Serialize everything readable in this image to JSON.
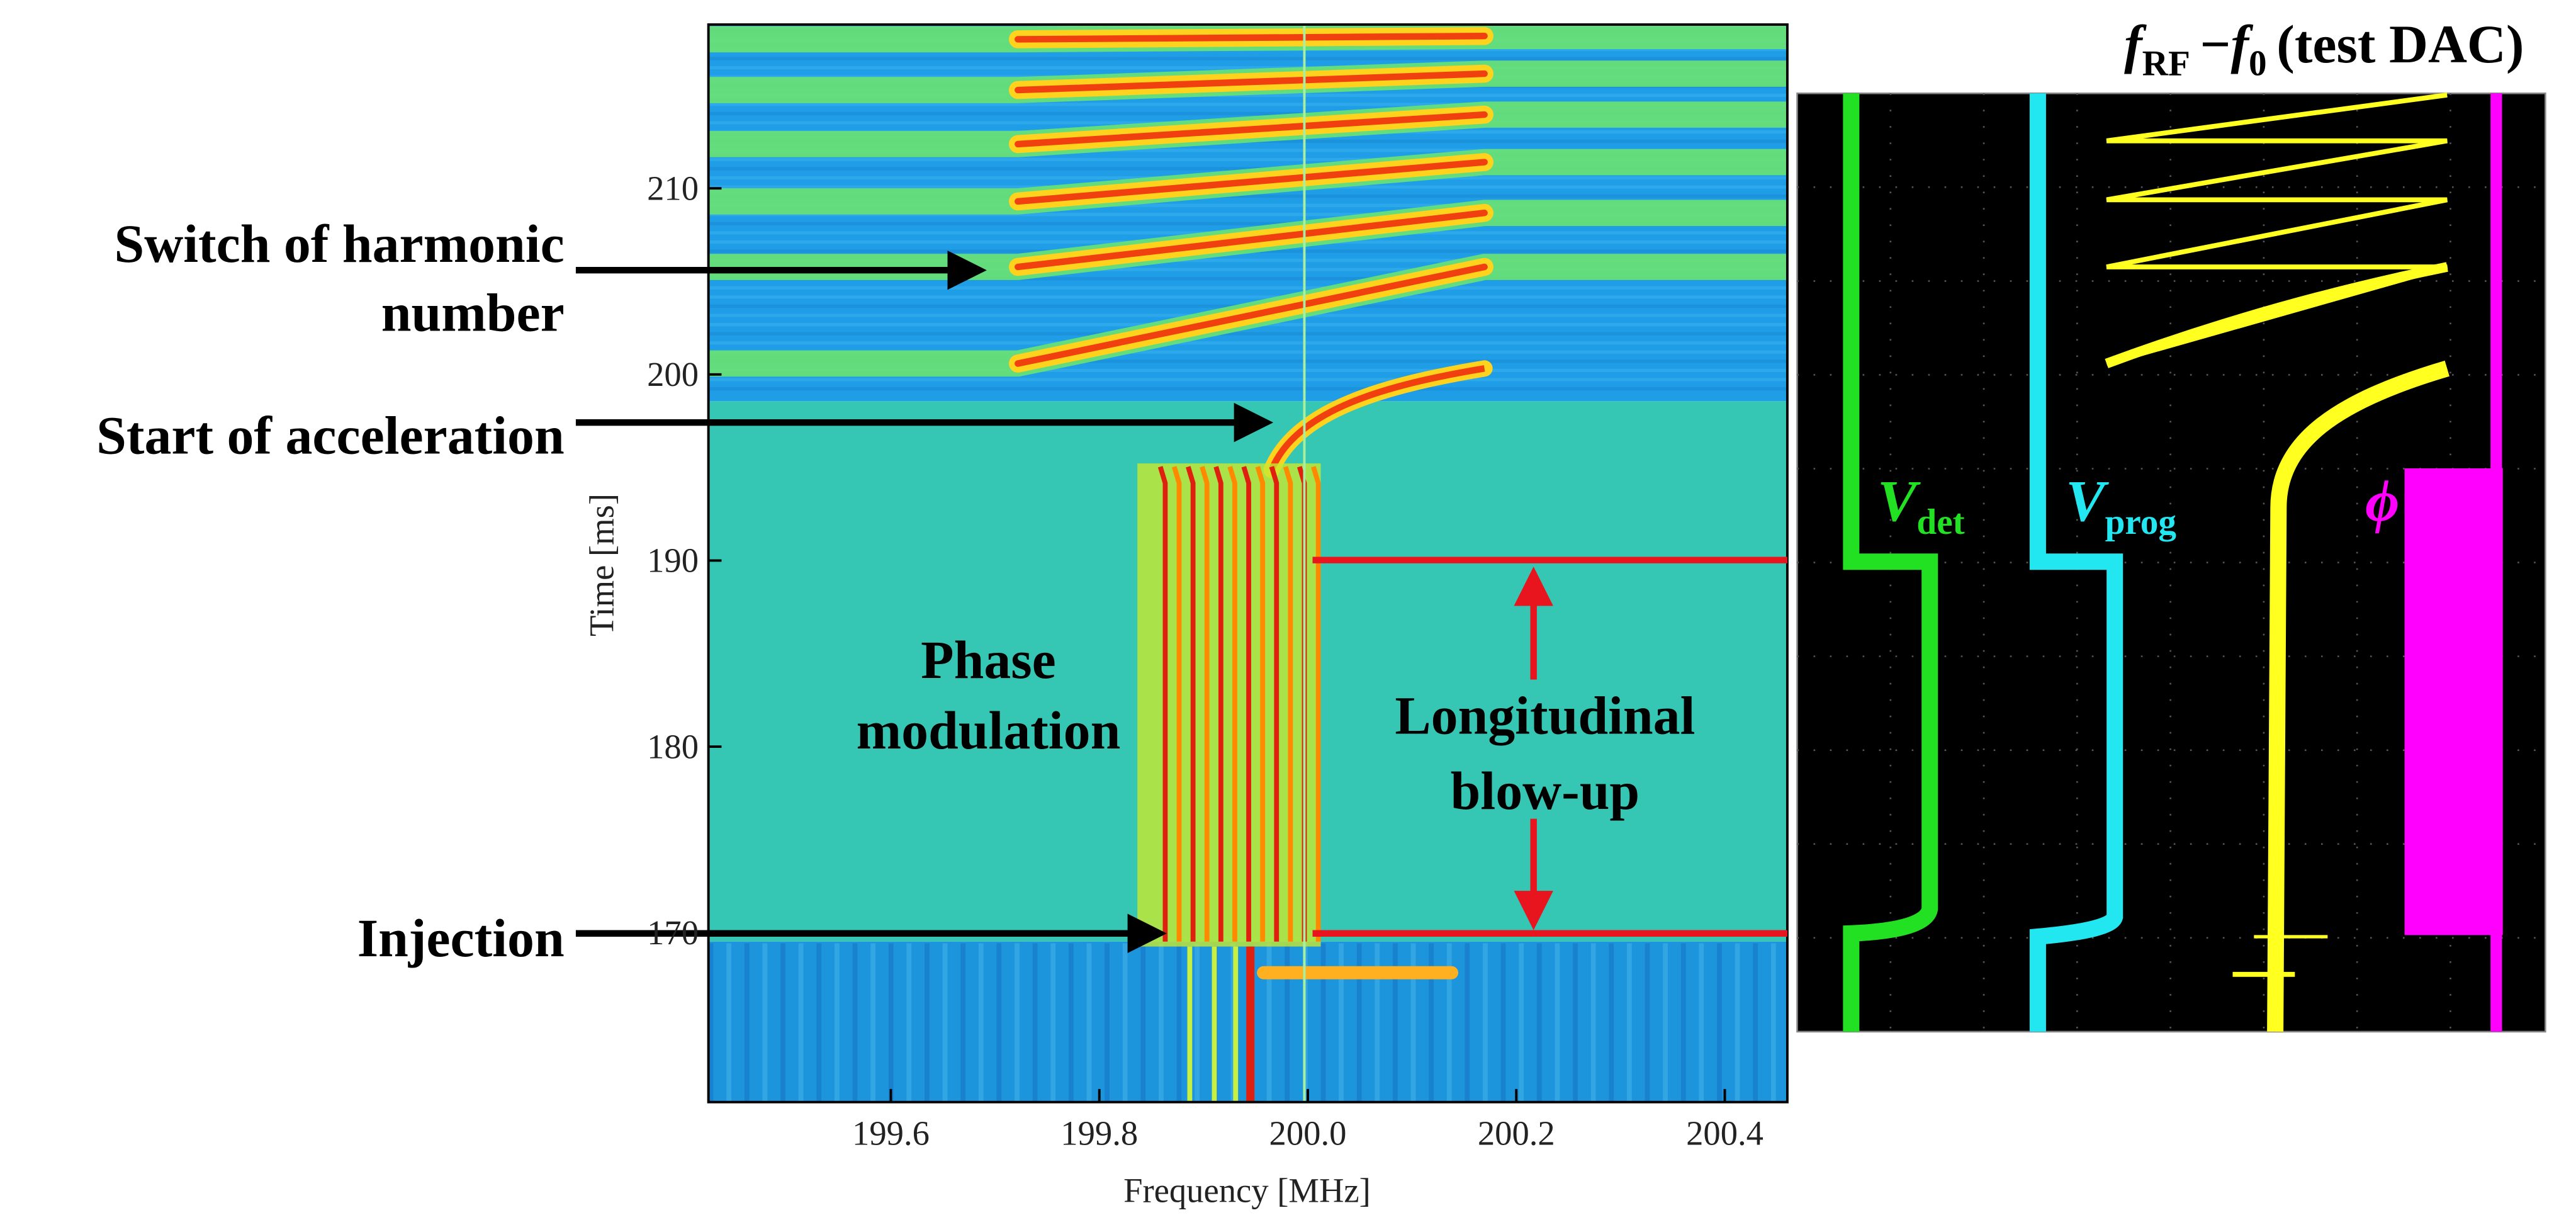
{
  "chart_data": [
    {
      "type": "spectrogram",
      "xlabel": "Frequency [MHz]",
      "ylabel": "Time [ms]",
      "xlim": [
        199.425,
        200.46
      ],
      "ylim": [
        160.9,
        218.8
      ],
      "xticks": [
        199.6,
        199.8,
        {
          "value": 200,
          "label": "200.0"
        },
        200.2,
        200.4
      ],
      "yticks": [
        170,
        180,
        190,
        200,
        210
      ],
      "annotations": [
        {
          "lines": [
            "Switch of harmonic",
            "number"
          ]
        },
        {
          "lines": [
            "Start of acceleration"
          ]
        },
        {
          "lines": [
            "Injection"
          ]
        },
        {
          "lines": [
            "Phase",
            "modulation"
          ]
        },
        {
          "lines": [
            "Longitudinal",
            "blow-up"
          ]
        }
      ]
    },
    {
      "type": "scope",
      "title": [
        "f",
        "RF",
        "−",
        "f",
        "0",
        "(test DAC)"
      ],
      "traces": [
        {
          "name": [
            "V",
            "det"
          ],
          "color": "#22e022"
        },
        {
          "name": [
            "V",
            "prog"
          ],
          "color": "#22e6f0"
        },
        {
          "name": [
            "ϕ"
          ],
          "color": "#ff00ff"
        }
      ]
    }
  ]
}
